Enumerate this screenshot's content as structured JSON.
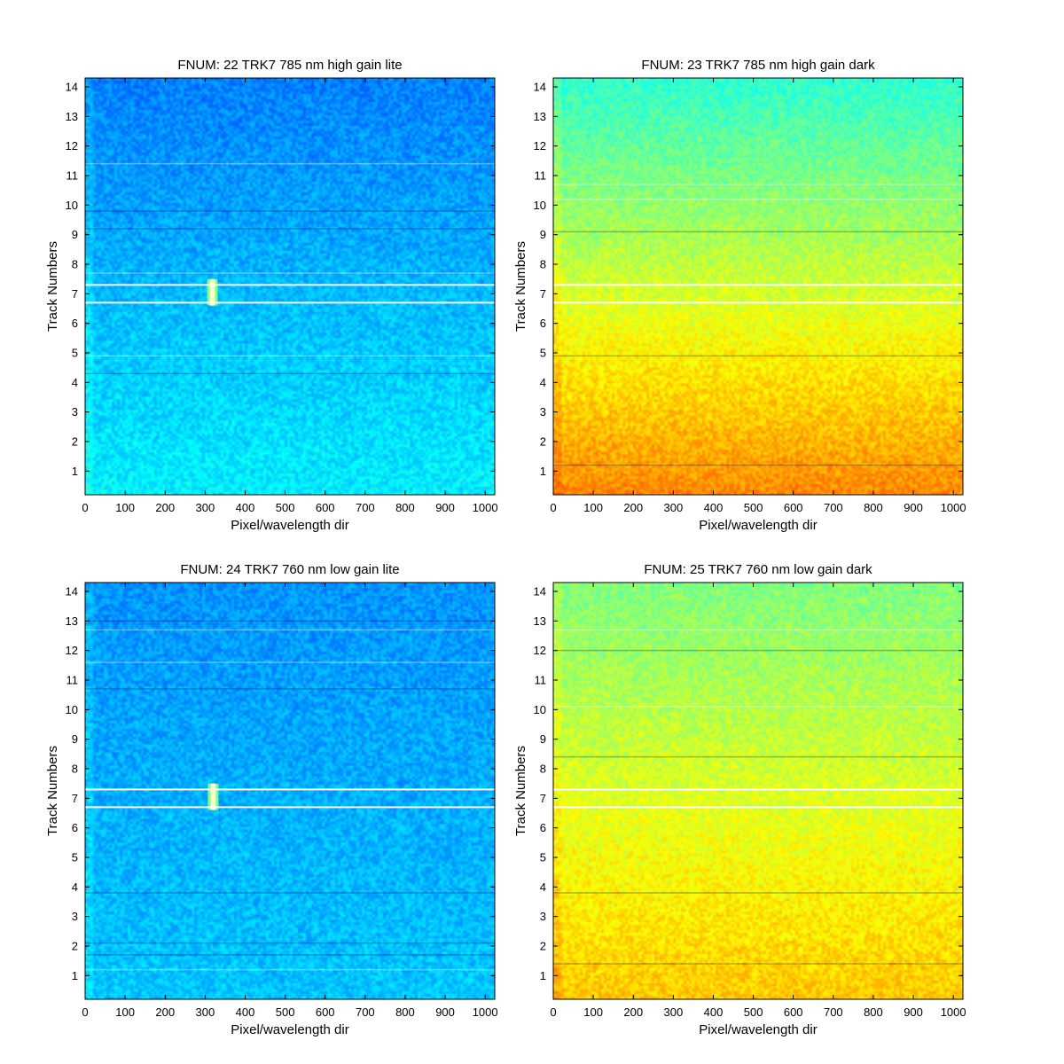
{
  "chart_data": [
    {
      "type": "heatmap",
      "title": "FNUM: 22 TRK7 785 nm high gain lite",
      "xlabel": "Pixel/wavelength dir",
      "ylabel": "Track Numbers",
      "xlim": [
        0,
        1024
      ],
      "ylim": [
        0.2,
        14.3
      ],
      "x_ticks": [
        0,
        100,
        200,
        300,
        400,
        500,
        600,
        700,
        800,
        900,
        1000
      ],
      "y_ticks": [
        1,
        2,
        3,
        4,
        5,
        6,
        7,
        8,
        9,
        10,
        11,
        12,
        13,
        14
      ],
      "colormap": "jet",
      "intensity_top": 0.25,
      "intensity_bottom": 0.36,
      "white_lines_y": [
        7.3,
        6.7
      ],
      "bright_spot": {
        "x": 318,
        "y_from": 6.6,
        "y_to": 7.5
      },
      "light_lines_y": [
        11.4,
        7.7,
        4.9
      ],
      "dark_lines_y": [
        9.8,
        9.2,
        4.3
      ]
    },
    {
      "type": "heatmap",
      "title": "FNUM: 23 TRK7 785 nm high gain dark",
      "xlabel": "Pixel/wavelength dir",
      "ylabel": "Track Numbers",
      "xlim": [
        0,
        1024
      ],
      "ylim": [
        0.2,
        14.3
      ],
      "x_ticks": [
        0,
        100,
        200,
        300,
        400,
        500,
        600,
        700,
        800,
        900,
        1000
      ],
      "y_ticks": [
        1,
        2,
        3,
        4,
        5,
        6,
        7,
        8,
        9,
        10,
        11,
        12,
        13,
        14
      ],
      "colormap": "jet",
      "intensity_top": 0.42,
      "intensity_bottom": 0.74,
      "white_lines_y": [
        7.3,
        6.7
      ],
      "light_lines_y": [
        10.7,
        10.2
      ],
      "dark_lines_y": [
        9.1,
        4.9,
        1.2
      ]
    },
    {
      "type": "heatmap",
      "title": "FNUM: 24 TRK7 760 nm low gain lite",
      "xlabel": "Pixel/wavelength dir",
      "ylabel": "Track Numbers",
      "xlim": [
        0,
        1024
      ],
      "ylim": [
        0.2,
        14.3
      ],
      "x_ticks": [
        0,
        100,
        200,
        300,
        400,
        500,
        600,
        700,
        800,
        900,
        1000
      ],
      "y_ticks": [
        1,
        2,
        3,
        4,
        5,
        6,
        7,
        8,
        9,
        10,
        11,
        12,
        13,
        14
      ],
      "colormap": "jet",
      "intensity_top": 0.27,
      "intensity_bottom": 0.32,
      "white_lines_y": [
        7.3,
        6.7
      ],
      "bright_spot": {
        "x": 320,
        "y_from": 6.6,
        "y_to": 7.5
      },
      "light_lines_y": [
        12.7,
        11.6,
        1.2
      ],
      "dark_lines_y": [
        13.0,
        10.7,
        3.8,
        2.1,
        1.7
      ]
    },
    {
      "type": "heatmap",
      "title": "FNUM: 25 TRK7 760 nm low gain dark",
      "xlabel": "Pixel/wavelength dir",
      "ylabel": "Track Numbers",
      "xlim": [
        0,
        1024
      ],
      "ylim": [
        0.2,
        14.3
      ],
      "x_ticks": [
        0,
        100,
        200,
        300,
        400,
        500,
        600,
        700,
        800,
        900,
        1000
      ],
      "y_ticks": [
        1,
        2,
        3,
        4,
        5,
        6,
        7,
        8,
        9,
        10,
        11,
        12,
        13,
        14
      ],
      "colormap": "jet",
      "intensity_top": 0.5,
      "intensity_bottom": 0.68,
      "white_lines_y": [
        7.3,
        6.7
      ],
      "light_lines_y": [
        12.7,
        10.1
      ],
      "dark_lines_y": [
        12.0,
        8.4,
        3.8,
        1.4
      ]
    }
  ]
}
